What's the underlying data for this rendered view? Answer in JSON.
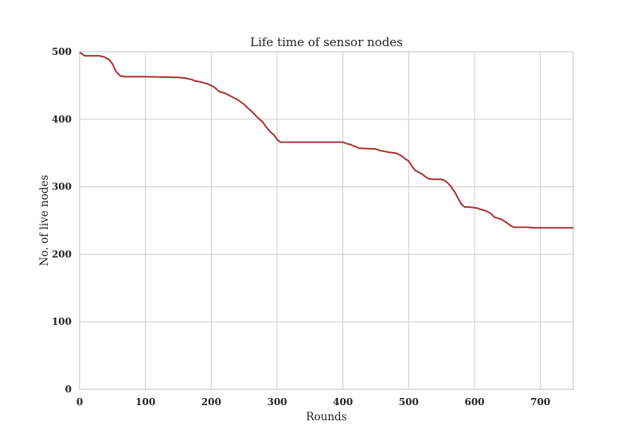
{
  "chart_data": {
    "type": "line",
    "title": "Life time of sensor nodes",
    "xlabel": "Rounds",
    "ylabel": "No. of live nodes",
    "xlim": [
      0,
      750
    ],
    "ylim": [
      0,
      500
    ],
    "xticks": [
      0,
      100,
      200,
      300,
      400,
      500,
      600,
      700
    ],
    "yticks": [
      0,
      100,
      200,
      300,
      400,
      500
    ],
    "grid": true,
    "line_color": "#a83232",
    "series": [
      {
        "x": [
          0,
          3,
          8,
          12,
          30,
          38,
          45,
          50,
          55,
          62,
          70,
          100,
          150,
          160,
          170,
          175,
          185,
          195,
          200,
          205,
          212,
          222,
          230,
          240,
          250,
          255,
          262,
          270,
          278,
          283,
          290,
          295,
          300,
          305,
          320,
          350,
          400,
          405,
          410,
          415,
          420,
          425,
          450,
          455,
          465,
          470,
          480,
          485,
          490,
          495,
          500,
          505,
          510,
          520,
          525,
          530,
          535,
          550,
          555,
          560,
          565,
          570,
          575,
          580,
          585,
          590,
          600,
          605,
          610,
          615,
          620,
          625,
          630,
          640,
          645,
          650,
          655,
          660,
          680,
          690,
          700,
          750
        ],
        "y": [
          499,
          497,
          494,
          494,
          494,
          492,
          488,
          482,
          471,
          464,
          463,
          463,
          462,
          461,
          459,
          457,
          455,
          452,
          450,
          447,
          441,
          438,
          434,
          429,
          422,
          417,
          411,
          403,
          396,
          389,
          381,
          377,
          370,
          366,
          366,
          366,
          366,
          364,
          363,
          361,
          359,
          357,
          356,
          354,
          352,
          351,
          350,
          348,
          345,
          341,
          338,
          330,
          324,
          319,
          315,
          312,
          311,
          311,
          309,
          305,
          299,
          292,
          283,
          274,
          270,
          270,
          269,
          268,
          266,
          265,
          263,
          260,
          255,
          252,
          249,
          246,
          242,
          240,
          240,
          239,
          239,
          239
        ]
      }
    ]
  }
}
